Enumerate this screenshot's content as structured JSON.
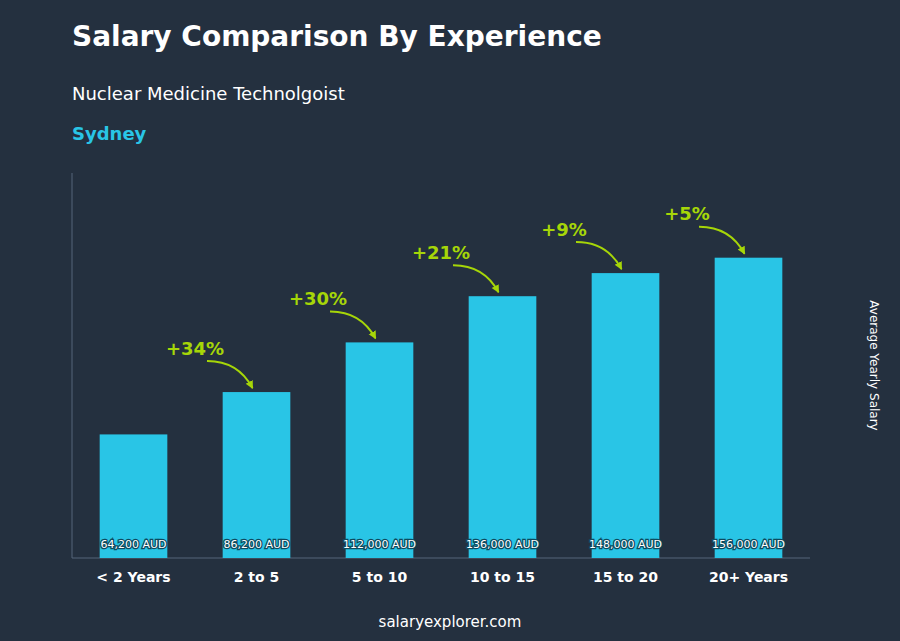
{
  "chart_data": {
    "type": "bar",
    "title": "Salary Comparison By Experience",
    "subtitle": "Nuclear Medicine Technolgoist",
    "city": "Sydney",
    "ylabel": "Average Yearly Salary",
    "footer": "salaryexplorer.com",
    "categories": [
      "< 2 Years",
      "2 to 5",
      "5 to 10",
      "10 to 15",
      "15 to 20",
      "20+ Years"
    ],
    "values": [
      64200,
      86200,
      112000,
      136000,
      148000,
      156000
    ],
    "value_labels": [
      "64,200 AUD",
      "86,200 AUD",
      "112,000 AUD",
      "136,000 AUD",
      "148,000 AUD",
      "156,000 AUD"
    ],
    "data_labels": true,
    "annotations": [
      "+34%",
      "+30%",
      "+21%",
      "+9%",
      "+5%"
    ],
    "color": "#29c5e6",
    "ylim": [
      0,
      200000
    ],
    "tick_labels": "x",
    "grid": false
  }
}
